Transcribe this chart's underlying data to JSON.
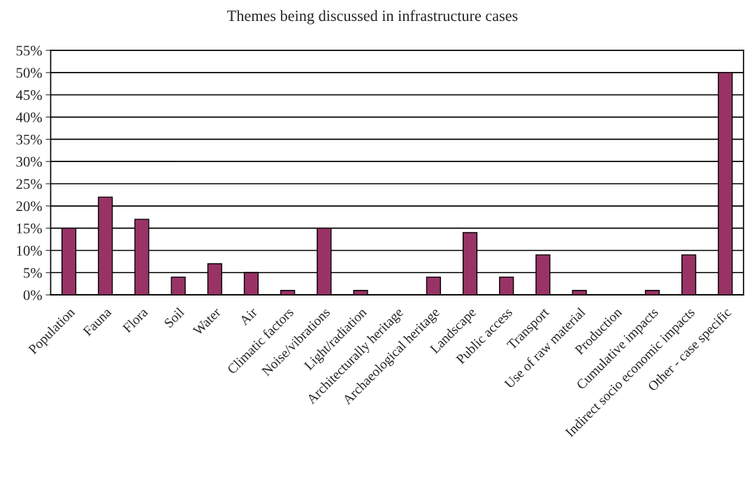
{
  "chart_data": {
    "type": "bar",
    "title": "Themes being discussed in infrastructure cases",
    "categories": [
      "Population",
      "Fauna",
      "Flora",
      "Soil",
      "Water",
      "Air",
      "Climatic factors",
      "Noise/vibrations",
      "Light/radiation",
      "Architecturally heritage",
      "Archaeological heritage",
      "Landscape",
      "Public access",
      "Transport",
      "Use of raw material",
      "Production",
      "Cumulative impacts",
      "Indirect socio economic impacts",
      "Other - case specific"
    ],
    "values": [
      15,
      22,
      17,
      4,
      7,
      5,
      1,
      15,
      1,
      0,
      4,
      14,
      4,
      9,
      1,
      0,
      1,
      9,
      50
    ],
    "color": "#993366",
    "ylim": [
      0,
      55
    ],
    "yticks": [
      {
        "value": 0,
        "label": "0%"
      },
      {
        "value": 5,
        "label": "5%"
      },
      {
        "value": 10,
        "label": "10%"
      },
      {
        "value": 15,
        "label": "15%"
      },
      {
        "value": 20,
        "label": "20%"
      },
      {
        "value": 25,
        "label": "25%"
      },
      {
        "value": 30,
        "label": "30%"
      },
      {
        "value": 35,
        "label": "35%"
      },
      {
        "value": 40,
        "label": "40%"
      },
      {
        "value": 45,
        "label": "45%"
      },
      {
        "value": 50,
        "label": "50%"
      },
      {
        "value": 55,
        "label": "55%"
      }
    ],
    "grid": "y",
    "legend": false
  }
}
